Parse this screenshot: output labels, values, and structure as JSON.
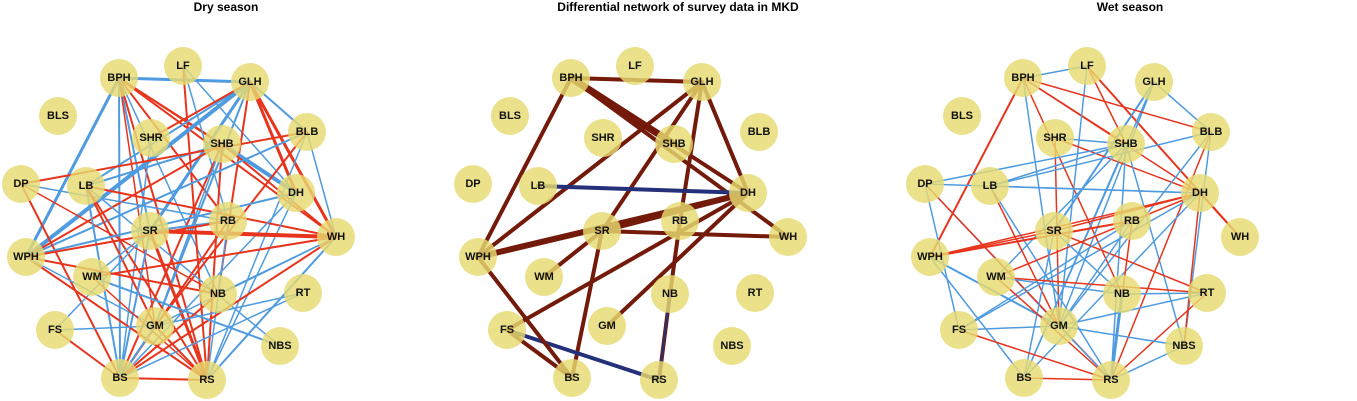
{
  "colors": {
    "node_fill": "#e8dc7a",
    "positive_dry_wet": "#e8341c",
    "negative_dry_wet": "#4f9be0",
    "positive_diff": "#731a0a",
    "negative_diff": "#23307a"
  },
  "nodes": [
    "BPH",
    "LF",
    "GLH",
    "BLS",
    "SHR",
    "SHB",
    "BLB",
    "DP",
    "LB",
    "DH",
    "SR",
    "RB",
    "WH",
    "WPH",
    "WM",
    "NB",
    "RT",
    "FS",
    "GM",
    "NBS",
    "BS",
    "RS"
  ],
  "panels": [
    {
      "title": "Dry season",
      "edges": [
        {
          "a": "BPH",
          "b": "GLH",
          "sign": "neg",
          "w": 3
        },
        {
          "a": "BPH",
          "b": "SHB",
          "sign": "pos",
          "w": 2
        },
        {
          "a": "BPH",
          "b": "DH",
          "sign": "pos",
          "w": 2
        },
        {
          "a": "BPH",
          "b": "WH",
          "sign": "pos",
          "w": 2
        },
        {
          "a": "BPH",
          "b": "SR",
          "sign": "neg",
          "w": 2
        },
        {
          "a": "BPH",
          "b": "WPH",
          "sign": "neg",
          "w": 3
        },
        {
          "a": "BPH",
          "b": "BS",
          "sign": "neg",
          "w": 2
        },
        {
          "a": "BPH",
          "b": "RS",
          "sign": "pos",
          "w": 2
        },
        {
          "a": "BPH",
          "b": "GM",
          "sign": "pos",
          "w": 1.5
        },
        {
          "a": "BPH",
          "b": "RB",
          "sign": "pos",
          "w": 2
        },
        {
          "a": "BPH",
          "b": "NB",
          "sign": "neg",
          "w": 1.5
        },
        {
          "a": "LF",
          "b": "RS",
          "sign": "pos",
          "w": 2
        },
        {
          "a": "LF",
          "b": "DH",
          "sign": "neg",
          "w": 1.5
        },
        {
          "a": "LF",
          "b": "RB",
          "sign": "neg",
          "w": 1.5
        },
        {
          "a": "GLH",
          "b": "WPH",
          "sign": "neg",
          "w": 4
        },
        {
          "a": "GLH",
          "b": "LB",
          "sign": "neg",
          "w": 2
        },
        {
          "a": "GLH",
          "b": "SHR",
          "sign": "pos",
          "w": 2
        },
        {
          "a": "GLH",
          "b": "SR",
          "sign": "neg",
          "w": 3
        },
        {
          "a": "GLH",
          "b": "WH",
          "sign": "pos",
          "w": 3
        },
        {
          "a": "GLH",
          "b": "BLB",
          "sign": "neg",
          "w": 2
        },
        {
          "a": "GLH",
          "b": "NB",
          "sign": "pos",
          "w": 2
        },
        {
          "a": "GLH",
          "b": "GM",
          "sign": "neg",
          "w": 2
        },
        {
          "a": "GLH",
          "b": "DH",
          "sign": "pos",
          "w": 3
        },
        {
          "a": "SHR",
          "b": "BS",
          "sign": "neg",
          "w": 1.5
        },
        {
          "a": "SHB",
          "b": "DH",
          "sign": "neg",
          "w": 4
        },
        {
          "a": "SHB",
          "b": "LB",
          "sign": "neg",
          "w": 2
        },
        {
          "a": "SHB",
          "b": "WPH",
          "sign": "pos",
          "w": 2
        },
        {
          "a": "SHB",
          "b": "BS",
          "sign": "pos",
          "w": 2
        },
        {
          "a": "SHB",
          "b": "RS",
          "sign": "pos",
          "w": 2
        },
        {
          "a": "SHB",
          "b": "WH",
          "sign": "pos",
          "w": 2
        },
        {
          "a": "SHB",
          "b": "GM",
          "sign": "neg",
          "w": 1.5
        },
        {
          "a": "BLB",
          "b": "WPH",
          "sign": "neg",
          "w": 2
        },
        {
          "a": "BLB",
          "b": "RS",
          "sign": "neg",
          "w": 1.5
        },
        {
          "a": "BLB",
          "b": "WH",
          "sign": "neg",
          "w": 1.5
        },
        {
          "a": "BLB",
          "b": "DP",
          "sign": "pos",
          "w": 2
        },
        {
          "a": "BLB",
          "b": "GM",
          "sign": "pos",
          "w": 2
        },
        {
          "a": "DP",
          "b": "RB",
          "sign": "neg",
          "w": 1.5
        },
        {
          "a": "DP",
          "b": "NB",
          "sign": "pos",
          "w": 1.5
        },
        {
          "a": "DP",
          "b": "BS",
          "sign": "pos",
          "w": 2
        },
        {
          "a": "LB",
          "b": "WH",
          "sign": "pos",
          "w": 2
        },
        {
          "a": "LB",
          "b": "BS",
          "sign": "neg",
          "w": 2
        },
        {
          "a": "LB",
          "b": "RS",
          "sign": "pos",
          "w": 2
        },
        {
          "a": "LB",
          "b": "NBS",
          "sign": "neg",
          "w": 1.5
        },
        {
          "a": "LB",
          "b": "GM",
          "sign": "pos",
          "w": 2
        },
        {
          "a": "DH",
          "b": "WPH",
          "sign": "neg",
          "w": 2
        },
        {
          "a": "DH",
          "b": "BS",
          "sign": "neg",
          "w": 1.5
        },
        {
          "a": "DH",
          "b": "RS",
          "sign": "neg",
          "w": 1.5
        },
        {
          "a": "SR",
          "b": "WH",
          "sign": "pos",
          "w": 4
        },
        {
          "a": "SR",
          "b": "RS",
          "sign": "pos",
          "w": 3
        },
        {
          "a": "SR",
          "b": "BS",
          "sign": "neg",
          "w": 2
        },
        {
          "a": "SR",
          "b": "WM",
          "sign": "neg",
          "w": 1.5
        },
        {
          "a": "SR",
          "b": "FS",
          "sign": "neg",
          "w": 1.5
        },
        {
          "a": "SR",
          "b": "RB",
          "sign": "neg",
          "w": 2
        },
        {
          "a": "RB",
          "b": "WPH",
          "sign": "pos",
          "w": 2
        },
        {
          "a": "RB",
          "b": "BS",
          "sign": "pos",
          "w": 2
        },
        {
          "a": "RB",
          "b": "RS",
          "sign": "neg",
          "w": 1.5
        },
        {
          "a": "WH",
          "b": "WM",
          "sign": "pos",
          "w": 2
        },
        {
          "a": "WH",
          "b": "NB",
          "sign": "neg",
          "w": 1.5
        },
        {
          "a": "WH",
          "b": "RS",
          "sign": "neg",
          "w": 2
        },
        {
          "a": "WH",
          "b": "GM",
          "sign": "neg",
          "w": 1.5
        },
        {
          "a": "WH",
          "b": "BS",
          "sign": "pos",
          "w": 2
        },
        {
          "a": "WPH",
          "b": "NB",
          "sign": "pos",
          "w": 2
        },
        {
          "a": "WPH",
          "b": "RS",
          "sign": "pos",
          "w": 2
        },
        {
          "a": "WPH",
          "b": "GM",
          "sign": "neg",
          "w": 1.5
        },
        {
          "a": "WM",
          "b": "NBS",
          "sign": "neg",
          "w": 2
        },
        {
          "a": "WM",
          "b": "RS",
          "sign": "pos",
          "w": 1.5
        },
        {
          "a": "NB",
          "b": "BS",
          "sign": "pos",
          "w": 2
        },
        {
          "a": "RT",
          "b": "BS",
          "sign": "neg",
          "w": 1.5
        },
        {
          "a": "RT",
          "b": "GM",
          "sign": "neg",
          "w": 1.5
        },
        {
          "a": "FS",
          "b": "BS",
          "sign": "pos",
          "w": 2
        },
        {
          "a": "FS",
          "b": "GM",
          "sign": "neg",
          "w": 1.5
        },
        {
          "a": "GM",
          "b": "BS",
          "sign": "neg",
          "w": 2
        },
        {
          "a": "GM",
          "b": "RS",
          "sign": "pos",
          "w": 2
        },
        {
          "a": "BS",
          "b": "RS",
          "sign": "pos",
          "w": 2
        }
      ]
    },
    {
      "title": "Differential network of survey data in MKD",
      "edges": [
        {
          "a": "BPH",
          "b": "GLH",
          "sign": "pos",
          "w": 4
        },
        {
          "a": "BPH",
          "b": "SHB",
          "sign": "pos",
          "w": 7
        },
        {
          "a": "BPH",
          "b": "DH",
          "sign": "pos",
          "w": 4
        },
        {
          "a": "BPH",
          "b": "WH",
          "sign": "pos",
          "w": 4
        },
        {
          "a": "BPH",
          "b": "WPH",
          "sign": "pos",
          "w": 4
        },
        {
          "a": "GLH",
          "b": "WPH",
          "sign": "pos",
          "w": 4
        },
        {
          "a": "GLH",
          "b": "SR",
          "sign": "pos",
          "w": 4
        },
        {
          "a": "GLH",
          "b": "RB",
          "sign": "pos",
          "w": 4
        },
        {
          "a": "GLH",
          "b": "DH",
          "sign": "pos",
          "w": 4
        },
        {
          "a": "LB",
          "b": "DH",
          "sign": "neg",
          "w": 4
        },
        {
          "a": "SR",
          "b": "BS",
          "sign": "pos",
          "w": 4
        },
        {
          "a": "SR",
          "b": "WM",
          "sign": "pos",
          "w": 4
        },
        {
          "a": "SR",
          "b": "WH",
          "sign": "pos",
          "w": 4
        },
        {
          "a": "DH",
          "b": "WPH",
          "sign": "pos",
          "w": 6
        },
        {
          "a": "DH",
          "b": "SR",
          "sign": "pos",
          "w": 5
        },
        {
          "a": "DH",
          "b": "FS",
          "sign": "pos",
          "w": 4
        },
        {
          "a": "DH",
          "b": "GM",
          "sign": "pos",
          "w": 4
        },
        {
          "a": "RB",
          "b": "NB",
          "sign": "pos",
          "w": 4
        },
        {
          "a": "NB",
          "b": "RS",
          "sign": "pos",
          "w": 4
        },
        {
          "a": "NB",
          "b": "RS",
          "sign": "neg",
          "w": 2
        },
        {
          "a": "FS",
          "b": "RS",
          "sign": "neg",
          "w": 4
        },
        {
          "a": "WPH",
          "b": "BS",
          "sign": "pos",
          "w": 4
        },
        {
          "a": "FS",
          "b": "BS",
          "sign": "pos",
          "w": 4
        }
      ]
    },
    {
      "title": "Wet season",
      "edges": [
        {
          "a": "BPH",
          "b": "WPH",
          "sign": "pos",
          "w": 2
        },
        {
          "a": "BPH",
          "b": "SHB",
          "sign": "pos",
          "w": 1.5
        },
        {
          "a": "BPH",
          "b": "DH",
          "sign": "pos",
          "w": 1.5
        },
        {
          "a": "BPH",
          "b": "NB",
          "sign": "pos",
          "w": 1.5
        },
        {
          "a": "BPH",
          "b": "GM",
          "sign": "neg",
          "w": 1.5
        },
        {
          "a": "LF",
          "b": "BPH",
          "sign": "neg",
          "w": 1.5
        },
        {
          "a": "LF",
          "b": "WH",
          "sign": "pos",
          "w": 2
        },
        {
          "a": "LF",
          "b": "SHB",
          "sign": "pos",
          "w": 1.5
        },
        {
          "a": "LF",
          "b": "GM",
          "sign": "neg",
          "w": 1.5
        },
        {
          "a": "GLH",
          "b": "BLB",
          "sign": "neg",
          "w": 1.5
        },
        {
          "a": "GLH",
          "b": "SR",
          "sign": "neg",
          "w": 2
        },
        {
          "a": "GLH",
          "b": "GM",
          "sign": "neg",
          "w": 1.5
        },
        {
          "a": "GLH",
          "b": "BS",
          "sign": "neg",
          "w": 1.5
        },
        {
          "a": "SHR",
          "b": "DH",
          "sign": "pos",
          "w": 1.5
        },
        {
          "a": "SHR",
          "b": "GM",
          "sign": "pos",
          "w": 1.5
        },
        {
          "a": "SHR",
          "b": "SHB",
          "sign": "neg",
          "w": 1.5
        },
        {
          "a": "SHB",
          "b": "LB",
          "sign": "neg",
          "w": 1.5
        },
        {
          "a": "SHB",
          "b": "DP",
          "sign": "neg",
          "w": 1.5
        },
        {
          "a": "SHB",
          "b": "NBS",
          "sign": "neg",
          "w": 1.5
        },
        {
          "a": "SHB",
          "b": "RS",
          "sign": "neg",
          "w": 1.5
        },
        {
          "a": "SHB",
          "b": "WM",
          "sign": "neg",
          "w": 1.5
        },
        {
          "a": "SHB",
          "b": "BS",
          "sign": "neg",
          "w": 1.5
        },
        {
          "a": "BLB",
          "b": "BPH",
          "sign": "pos",
          "w": 1.5
        },
        {
          "a": "BLB",
          "b": "LB",
          "sign": "neg",
          "w": 1.5
        },
        {
          "a": "BLB",
          "b": "GM",
          "sign": "neg",
          "w": 1.5
        },
        {
          "a": "BLB",
          "b": "RS",
          "sign": "pos",
          "w": 1.5
        },
        {
          "a": "BLB",
          "b": "NBS",
          "sign": "neg",
          "w": 1.5
        },
        {
          "a": "DP",
          "b": "GM",
          "sign": "neg",
          "w": 1.5
        },
        {
          "a": "DP",
          "b": "FS",
          "sign": "neg",
          "w": 1.5
        },
        {
          "a": "DP",
          "b": "RS",
          "sign": "pos",
          "w": 1.5
        },
        {
          "a": "DP",
          "b": "DH",
          "sign": "neg",
          "w": 1.5
        },
        {
          "a": "LB",
          "b": "DH",
          "sign": "neg",
          "w": 1.5
        },
        {
          "a": "LB",
          "b": "GM",
          "sign": "pos",
          "w": 1.5
        },
        {
          "a": "LB",
          "b": "RS",
          "sign": "neg",
          "w": 1.5
        },
        {
          "a": "DH",
          "b": "WH",
          "sign": "pos",
          "w": 2
        },
        {
          "a": "DH",
          "b": "SR",
          "sign": "pos",
          "w": 1.5
        },
        {
          "a": "DH",
          "b": "WPH",
          "sign": "pos",
          "w": 1.5
        },
        {
          "a": "DH",
          "b": "BS",
          "sign": "neg",
          "w": 1.5
        },
        {
          "a": "DH",
          "b": "NBS",
          "sign": "pos",
          "w": 1.5
        },
        {
          "a": "DH",
          "b": "WM",
          "sign": "pos",
          "w": 1.5
        },
        {
          "a": "DH",
          "b": "FS",
          "sign": "neg",
          "w": 1.5
        },
        {
          "a": "SR",
          "b": "WPH",
          "sign": "pos",
          "w": 1.5
        },
        {
          "a": "SR",
          "b": "RT",
          "sign": "pos",
          "w": 1.5
        },
        {
          "a": "SR",
          "b": "BS",
          "sign": "neg",
          "w": 1.5
        },
        {
          "a": "SR",
          "b": "NB",
          "sign": "neg",
          "w": 1.5
        },
        {
          "a": "RB",
          "b": "WPH",
          "sign": "pos",
          "w": 2
        },
        {
          "a": "RB",
          "b": "GM",
          "sign": "neg",
          "w": 1.5
        },
        {
          "a": "RB",
          "b": "FS",
          "sign": "neg",
          "w": 1.5
        },
        {
          "a": "RB",
          "b": "RS",
          "sign": "pos",
          "w": 1.5
        },
        {
          "a": "WPH",
          "b": "GM",
          "sign": "neg",
          "w": 2
        },
        {
          "a": "WPH",
          "b": "BS",
          "sign": "neg",
          "w": 1.5
        },
        {
          "a": "WM",
          "b": "RT",
          "sign": "pos",
          "w": 1.5
        },
        {
          "a": "WM",
          "b": "RS",
          "sign": "pos",
          "w": 1.5
        },
        {
          "a": "WM",
          "b": "NB",
          "sign": "neg",
          "w": 1.5
        },
        {
          "a": "NB",
          "b": "RS",
          "sign": "neg",
          "w": 3
        },
        {
          "a": "NB",
          "b": "RT",
          "sign": "neg",
          "w": 1.5
        },
        {
          "a": "RT",
          "b": "GM",
          "sign": "neg",
          "w": 1.5
        },
        {
          "a": "RT",
          "b": "RS",
          "sign": "pos",
          "w": 1.5
        },
        {
          "a": "FS",
          "b": "GM",
          "sign": "neg",
          "w": 1.5
        },
        {
          "a": "FS",
          "b": "RS",
          "sign": "pos",
          "w": 1.5
        },
        {
          "a": "GM",
          "b": "NBS",
          "sign": "neg",
          "w": 1.5
        },
        {
          "a": "GM",
          "b": "RS",
          "sign": "neg",
          "w": 1.5
        },
        {
          "a": "BS",
          "b": "RS",
          "sign": "pos",
          "w": 1.5
        },
        {
          "a": "NBS",
          "b": "RS",
          "sign": "neg",
          "w": 1.5
        }
      ]
    }
  ]
}
